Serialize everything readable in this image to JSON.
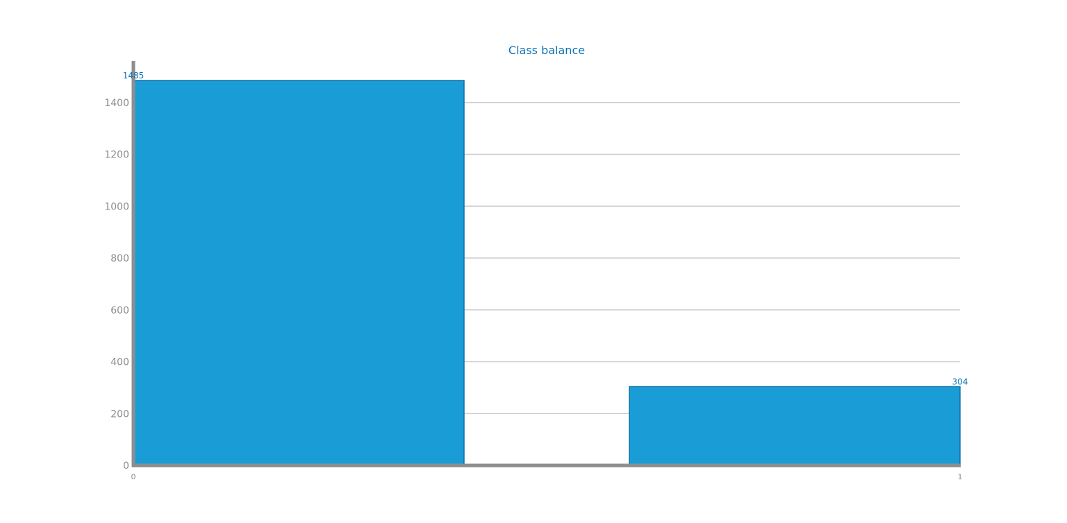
{
  "chart_data": {
    "type": "bar",
    "title": "Class balance",
    "categories": [
      "0",
      "1"
    ],
    "values": [
      1485,
      304
    ],
    "data_labels": [
      "1485",
      "304"
    ],
    "xlabel": "",
    "ylabel": "",
    "ylim": [
      0,
      1560
    ],
    "yticks": [
      0,
      200,
      400,
      600,
      800,
      1000,
      1200,
      1400
    ],
    "ytick_labels": [
      "0",
      "200",
      "400",
      "600",
      "800",
      "1000",
      "1200",
      "1400"
    ],
    "xtick_labels": [
      "0",
      "1"
    ],
    "grid": true,
    "legend": "none",
    "colors": {
      "bar_fill": "#1a9dd6",
      "bar_edge": "#0f6ea8",
      "title": "#1072b4",
      "data_label": "#1072b4",
      "tick_label": "#8c8c8c",
      "grid": "#cccccc",
      "axis": "#8e8e8e"
    }
  }
}
